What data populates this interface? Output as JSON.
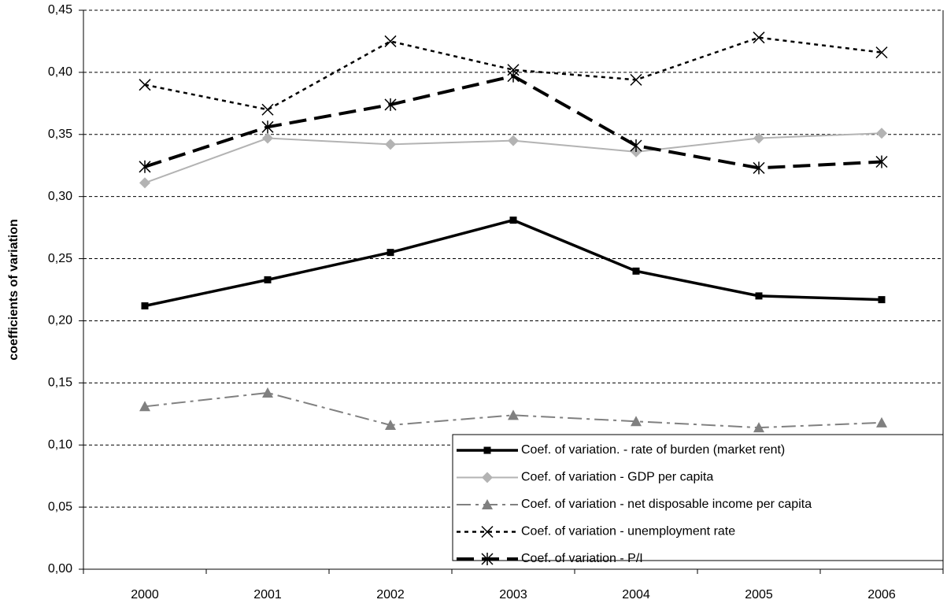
{
  "chart_data": {
    "type": "line",
    "y_label": "coefficients of variation",
    "categories": [
      "2000",
      "2001",
      "2002",
      "2003",
      "2004",
      "2005",
      "2006"
    ],
    "series": [
      {
        "name": "Coef. of variation. - rate of burden (market rent)",
        "color": "#000000",
        "values": [
          0.212,
          0.233,
          0.255,
          0.281,
          0.24,
          0.22,
          0.217
        ]
      },
      {
        "name": "Coef. of variation - GDP per capita",
        "color": "#b3b3b3",
        "values": [
          0.311,
          0.347,
          0.342,
          0.345,
          0.336,
          0.347,
          0.351
        ]
      },
      {
        "name": "Coef. of variation - net  disposable income per capita",
        "color": "#808080",
        "values": [
          0.131,
          0.142,
          0.116,
          0.124,
          0.119,
          0.114,
          0.118
        ]
      },
      {
        "name": "Coef. of variation - unemployment rate",
        "color": "#000000",
        "values": [
          0.39,
          0.37,
          0.425,
          0.402,
          0.394,
          0.428,
          0.416
        ]
      },
      {
        "name": "Coef. of variation - P/I",
        "color": "#000000",
        "values": [
          0.324,
          0.356,
          0.374,
          0.397,
          0.341,
          0.323,
          0.328
        ]
      }
    ],
    "ylim": [
      0,
      0.45
    ],
    "yticks": [
      {
        "value": 0,
        "label": "0,00"
      },
      {
        "value": 0.05,
        "label": "0,05"
      },
      {
        "value": 0.1,
        "label": "0,10"
      },
      {
        "value": 0.15,
        "label": "0,15"
      },
      {
        "value": 0.2,
        "label": "0,20"
      },
      {
        "value": 0.25,
        "label": "0,25"
      },
      {
        "value": 0.3,
        "label": "0,30"
      },
      {
        "value": 0.35,
        "label": "0,35"
      },
      {
        "value": 0.4,
        "label": "0,40"
      },
      {
        "value": 0.45,
        "label": "0,45"
      }
    ],
    "grid": true
  }
}
